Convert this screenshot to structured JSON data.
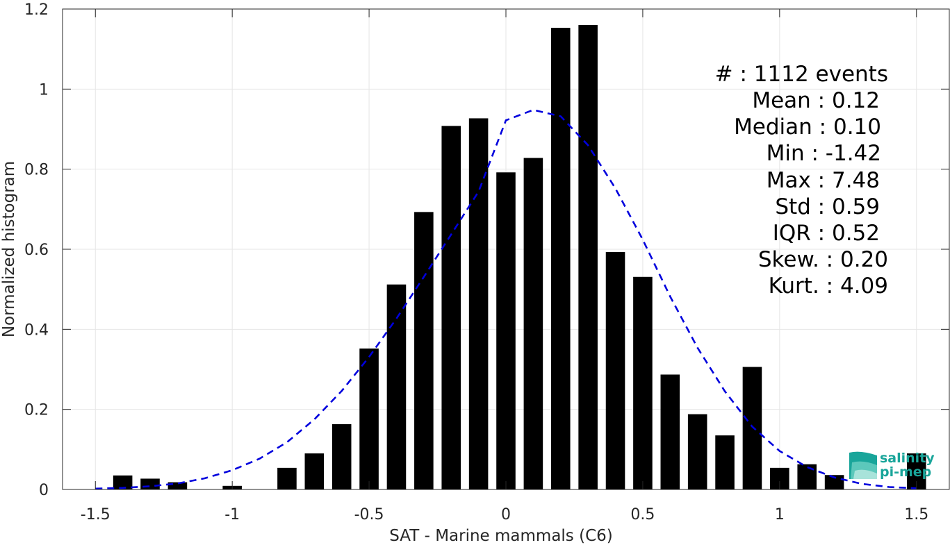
{
  "chart_data": {
    "type": "bar",
    "xlabel": "SAT - Marine mammals (C6)",
    "ylabel": "Normalized histogram",
    "xlim": [
      -1.62,
      1.62
    ],
    "ylim": [
      0,
      1.2
    ],
    "xticks": [
      -1.5,
      -1,
      -0.5,
      0,
      0.5,
      1,
      1.5
    ],
    "xtick_labels": [
      "-1.5",
      "-1",
      "-0.5",
      "0",
      "0.5",
      "1",
      "1.5"
    ],
    "yticks": [
      0,
      0.2,
      0.4,
      0.6,
      0.8,
      1,
      1.2
    ],
    "ytick_labels": [
      "0",
      "0.2",
      "0.4",
      "0.6",
      "0.8",
      "1",
      "1.2"
    ],
    "grid": true,
    "bar_color": "#000000",
    "bar_width": 0.07,
    "bars": {
      "x": [
        -1.4,
        -1.3,
        -1.2,
        -1.0,
        -0.8,
        -0.7,
        -0.6,
        -0.5,
        -0.4,
        -0.3,
        -0.2,
        -0.1,
        0.0,
        0.1,
        0.2,
        0.3,
        0.4,
        0.5,
        0.6,
        0.7,
        0.8,
        0.9,
        1.0,
        1.1,
        1.2,
        1.5
      ],
      "values": [
        0.035,
        0.027,
        0.018,
        0.009,
        0.054,
        0.09,
        0.163,
        0.352,
        0.512,
        0.693,
        0.908,
        0.927,
        0.792,
        0.828,
        1.153,
        1.16,
        0.593,
        0.531,
        0.287,
        0.188,
        0.135,
        0.306,
        0.054,
        0.063,
        0.036,
        0.09
      ]
    },
    "fit_curve": {
      "style": "dashed",
      "color": "#0000dd",
      "x": [
        -1.5,
        -1.4,
        -1.3,
        -1.2,
        -1.1,
        -1.0,
        -0.9,
        -0.8,
        -0.7,
        -0.6,
        -0.5,
        -0.4,
        -0.3,
        -0.2,
        -0.1,
        0.0,
        0.1,
        0.2,
        0.3,
        0.4,
        0.5,
        0.6,
        0.7,
        0.8,
        0.9,
        1.0,
        1.1,
        1.2,
        1.3,
        1.4,
        1.5
      ],
      "y": [
        0.002,
        0.004,
        0.008,
        0.015,
        0.028,
        0.048,
        0.077,
        0.118,
        0.175,
        0.246,
        0.331,
        0.427,
        0.531,
        0.637,
        0.744,
        0.922,
        0.948,
        0.932,
        0.86,
        0.752,
        0.624,
        0.482,
        0.354,
        0.245,
        0.157,
        0.096,
        0.056,
        0.03,
        0.014,
        0.006,
        0.003
      ]
    },
    "stats": [
      {
        "label": "#  : 1112 events"
      },
      {
        "label": "Mean : 0.12"
      },
      {
        "label": "Median : 0.10"
      },
      {
        "label": "Min : -1.42"
      },
      {
        "label": "Max : 7.48"
      },
      {
        "label": "Std : 0.59"
      },
      {
        "label": "IQR : 0.52"
      },
      {
        "label": "Skew. : 0.20"
      },
      {
        "label": "Kurt. : 4.09"
      }
    ]
  },
  "logo": {
    "line1": "salinity",
    "line2": "pi-mep",
    "color": "#19a59a"
  }
}
